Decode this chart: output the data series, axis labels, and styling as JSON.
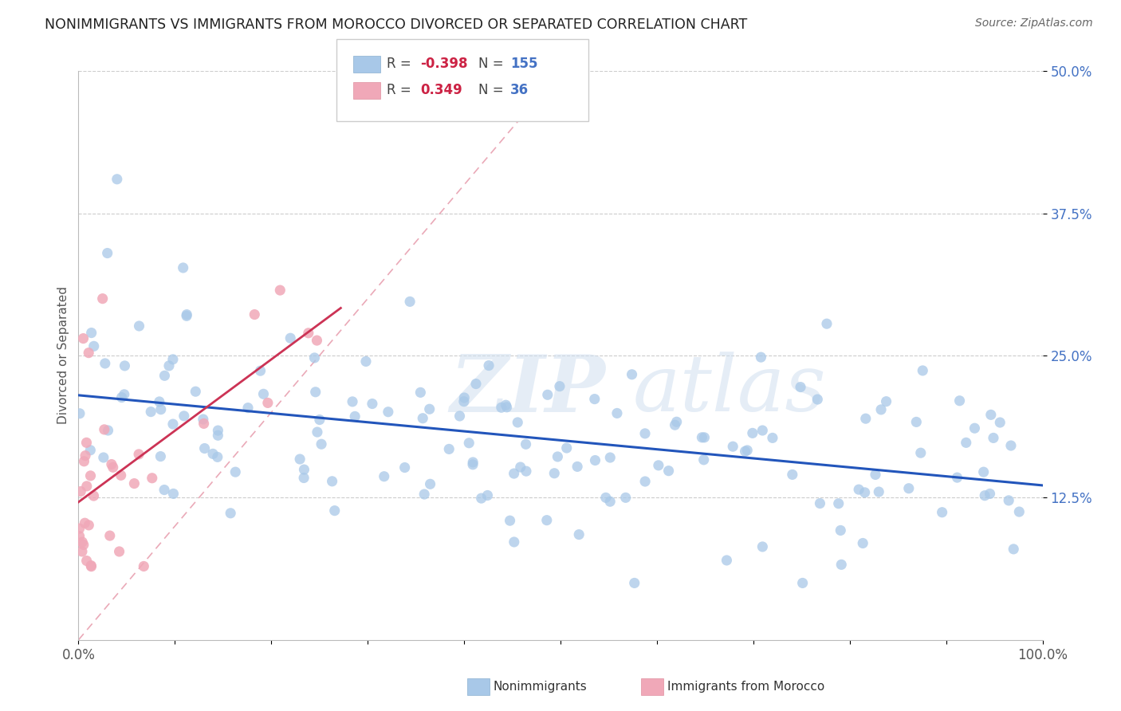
{
  "title": "NONIMMIGRANTS VS IMMIGRANTS FROM MOROCCO DIVORCED OR SEPARATED CORRELATION CHART",
  "source": "Source: ZipAtlas.com",
  "ylabel": "Divorced or Separated",
  "xlim": [
    0,
    1.0
  ],
  "ylim": [
    0,
    0.5
  ],
  "y_ticks": [
    0.125,
    0.25,
    0.375,
    0.5
  ],
  "y_tick_labels": [
    "12.5%",
    "25.0%",
    "37.5%",
    "50.0%"
  ],
  "x_tick_labels": [
    "0.0%",
    "100.0%"
  ],
  "legend_R1": "-0.398",
  "legend_N1": "155",
  "legend_R2": "0.349",
  "legend_N2": "36",
  "nonimmigrants_color": "#a8c8e8",
  "immigrants_color": "#f0a8b8",
  "line_nonimmigrants_color": "#2255bb",
  "line_immigrants_color": "#cc3355",
  "diag_line_color": "#e8a0b0",
  "watermark_zip": "ZIP",
  "watermark_atlas": "atlas",
  "background_color": "#ffffff",
  "grid_color": "#cccccc",
  "title_color": "#222222",
  "source_color": "#666666",
  "axis_label_color": "#555555",
  "ytick_color": "#4472c4",
  "seed": 12345
}
